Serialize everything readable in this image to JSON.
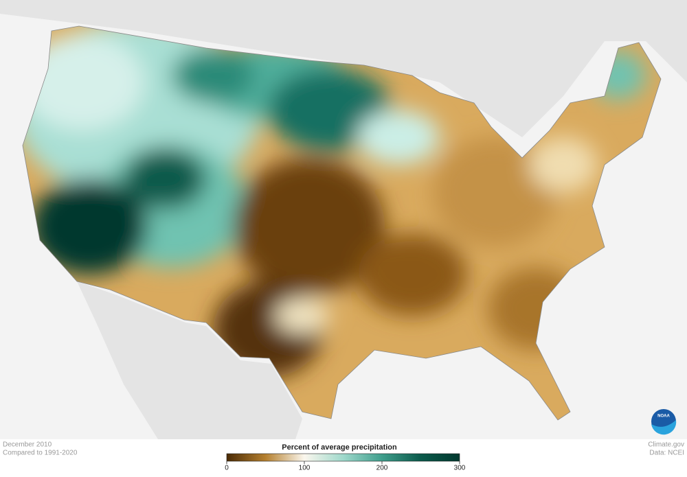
{
  "map": {
    "date": "December 2010",
    "baseline": "Compared to 1991-2020"
  },
  "legend": {
    "title": "Percent of average precipitation",
    "range": [
      0,
      300
    ],
    "ticks": [
      0,
      100,
      200,
      300
    ],
    "colors": [
      "#4a2a05",
      "#b5802f",
      "#fbf7ee",
      "#9fd9cc",
      "#3f9e8c",
      "#0b5a4b",
      "#01382e"
    ]
  },
  "credits": {
    "site": "Climate.gov",
    "source": "Data: NCEI",
    "logo": "NOAA"
  }
}
